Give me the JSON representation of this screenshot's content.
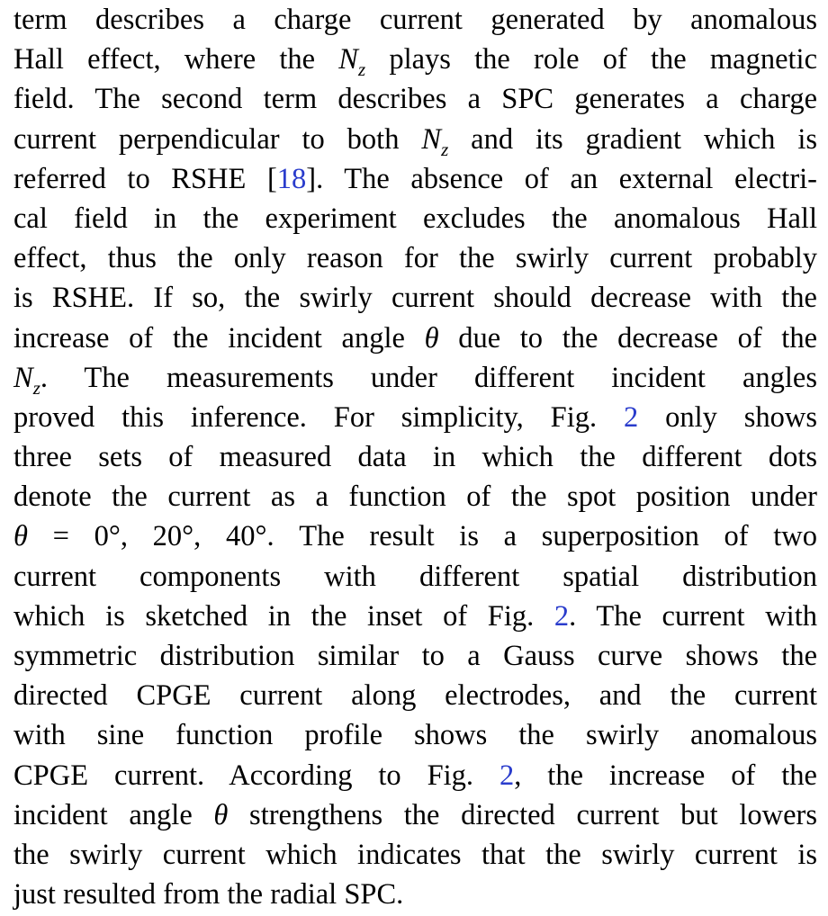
{
  "lines": [
    [
      {
        "t": "term describes a charge current generated by anomalous"
      }
    ],
    [
      {
        "t": "Hall effect, where the "
      },
      {
        "t": "N",
        "k": "math"
      },
      {
        "t": "z",
        "k": "sub"
      },
      {
        "t": " plays the role of the magnetic"
      }
    ],
    [
      {
        "t": "field. The second term describes a SPC generates a charge"
      }
    ],
    [
      {
        "t": "current perpendicular to both "
      },
      {
        "t": "N",
        "k": "math"
      },
      {
        "t": "z",
        "k": "sub"
      },
      {
        "t": " and its gradient which is"
      }
    ],
    [
      {
        "t": "referred to RSHE ["
      },
      {
        "t": "18",
        "k": "link"
      },
      {
        "t": "]. The absence of an external electri-"
      }
    ],
    [
      {
        "t": "cal field in the experiment excludes the anomalous Hall"
      }
    ],
    [
      {
        "t": "effect, thus the only reason for the swirly current probably"
      }
    ],
    [
      {
        "t": "is RSHE. If so, the swirly current should decrease with the"
      }
    ],
    [
      {
        "t": "increase of the incident angle "
      },
      {
        "t": "θ",
        "k": "math"
      },
      {
        "t": " due to the decrease of the"
      }
    ],
    [
      {
        "t": "N",
        "k": "math"
      },
      {
        "t": "z",
        "k": "sub"
      },
      {
        "t": ". The measurements under different incident angles"
      }
    ],
    [
      {
        "t": "proved this inference. For simplicity, Fig. "
      },
      {
        "t": "2",
        "k": "link"
      },
      {
        "t": " only shows"
      }
    ],
    [
      {
        "t": "three sets of measured data in which the different dots"
      }
    ],
    [
      {
        "t": "denote the current as a function of the spot position under"
      }
    ],
    [
      {
        "t": "θ",
        "k": "math"
      },
      {
        "t": " = 0°, 20°, 40°. The result is a superposition of two"
      }
    ],
    [
      {
        "t": "current components with different spatial distribution"
      }
    ],
    [
      {
        "t": "which is sketched in the inset of Fig. "
      },
      {
        "t": "2",
        "k": "link"
      },
      {
        "t": ". The current with"
      }
    ],
    [
      {
        "t": "symmetric distribution similar to a Gauss curve shows the"
      }
    ],
    [
      {
        "t": "directed CPGE current along electrodes, and the current"
      }
    ],
    [
      {
        "t": "with sine function profile shows the swirly anomalous"
      }
    ],
    [
      {
        "t": "CPGE current. According to Fig. "
      },
      {
        "t": "2",
        "k": "link"
      },
      {
        "t": ", the increase of the"
      }
    ],
    [
      {
        "t": "incident angle "
      },
      {
        "t": "θ",
        "k": "math"
      },
      {
        "t": " strengthens the directed current but lowers"
      }
    ],
    [
      {
        "t": "the swirly current which indicates that the swirly current is"
      }
    ],
    [
      {
        "t": "just resulted from the radial SPC."
      }
    ]
  ]
}
